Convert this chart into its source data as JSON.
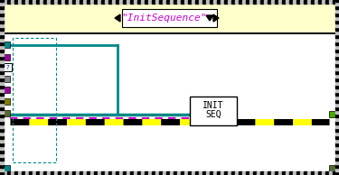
{
  "title_text": "\"InitSequence\"",
  "bg_outer": "#c0c0c0",
  "bg_header": "#ffffcc",
  "bg_body": "#ffffff",
  "teal_color": "#008888",
  "magenta_color": "#cc00cc",
  "yellow_color": "#ffff00",
  "olive_color": "#808000",
  "purple_color": "#990099",
  "gray_color": "#888888",
  "box_label_line1": "INIT",
  "box_label_line2": "SEQ",
  "fig_width": 3.75,
  "fig_height": 1.94,
  "dpi": 100
}
